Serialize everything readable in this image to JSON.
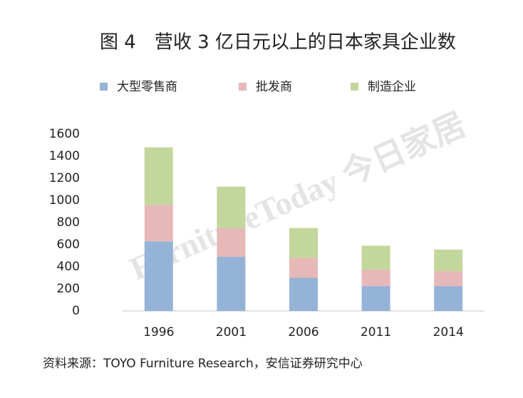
{
  "chart_data": {
    "type": "stacked_bar",
    "title": "图 4　营收 3 亿日元以上的日本家具企业数",
    "categories": [
      "1996",
      "2001",
      "2006",
      "2011",
      "2014"
    ],
    "series": [
      {
        "name": "大型零售商",
        "color": "#95b3d7",
        "values": [
          630,
          490,
          300,
          225,
          225
        ]
      },
      {
        "name": "批发商",
        "color": "#e6b9b8",
        "values": [
          330,
          260,
          180,
          150,
          135
        ]
      },
      {
        "name": "制造企业",
        "color": "#c3d69b",
        "values": [
          520,
          375,
          270,
          215,
          195
        ]
      }
    ],
    "ylim": [
      0,
      1600
    ],
    "yticks": [
      0,
      200,
      400,
      600,
      800,
      1000,
      1200,
      1400,
      1600
    ],
    "grid": false,
    "watermark": "FurnitureToday 今日家居",
    "source": "资料来源：TOYO Furniture Research，安信证券研究中心"
  }
}
